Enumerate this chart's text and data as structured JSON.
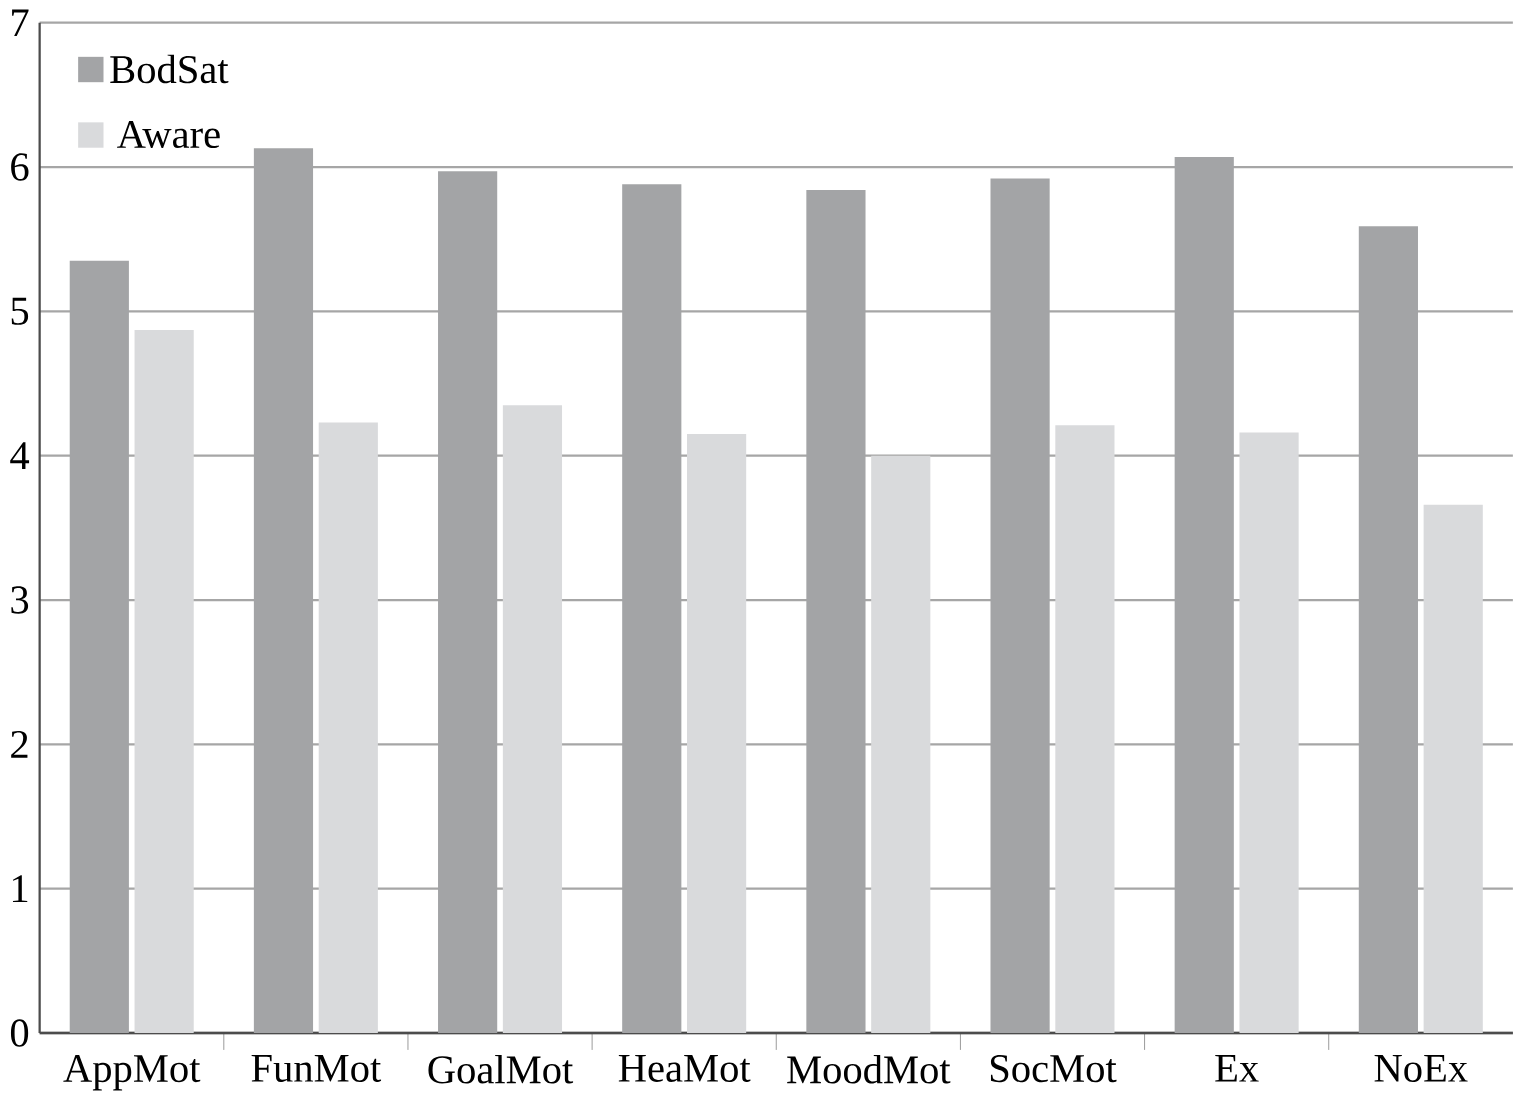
{
  "chart_data": {
    "type": "bar",
    "categories": [
      "AppMot",
      "FunMot",
      "GoalMot",
      "HeaMot",
      "MoodMot",
      "SocMot",
      "Ex",
      "NoEx"
    ],
    "series": [
      {
        "name": "BodSat",
        "color": "#a3a4a6",
        "values": [
          5.35,
          6.13,
          5.97,
          5.88,
          5.84,
          5.92,
          6.07,
          5.59
        ]
      },
      {
        "name": "Aware",
        "color": "#d9dadc",
        "values": [
          4.87,
          4.23,
          4.35,
          4.15,
          4.0,
          4.21,
          4.16,
          3.66
        ]
      }
    ],
    "ylim": [
      0,
      7
    ],
    "yticks": [
      0,
      1,
      2,
      3,
      4,
      5,
      6,
      7
    ],
    "grid": "y",
    "legend": "top left"
  }
}
